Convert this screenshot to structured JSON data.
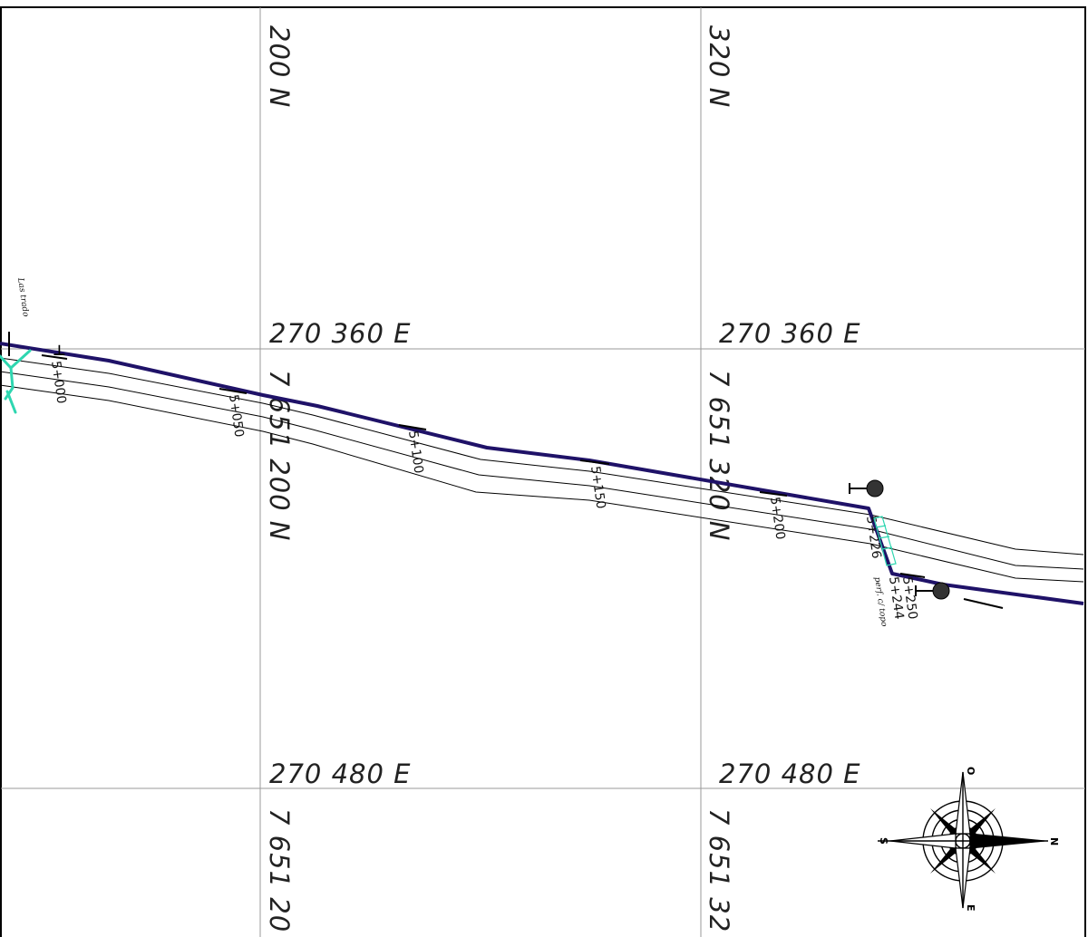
{
  "grid": {
    "vertical_lines": [
      {
        "id": "col-a",
        "labels": [
          {
            "id": "col-a-top",
            "text": "200 N"
          },
          {
            "id": "col-a-mid",
            "text": "7 651 200 N"
          },
          {
            "id": "col-a-bot",
            "text": "7 651 20"
          }
        ]
      },
      {
        "id": "col-b",
        "labels": [
          {
            "id": "col-b-top",
            "text": "320 N"
          },
          {
            "id": "col-b-mid",
            "text": "7 651 320 N"
          },
          {
            "id": "col-b-bot",
            "text": "7 651 32"
          }
        ]
      }
    ],
    "horizontal_lines": [
      {
        "id": "row-1",
        "labels": [
          {
            "id": "row-1-a",
            "text": "270 360 E"
          },
          {
            "id": "row-1-b",
            "text": "270 360 E"
          }
        ]
      },
      {
        "id": "row-2",
        "labels": [
          {
            "id": "row-2-a",
            "text": "270 480 E"
          },
          {
            "id": "row-2-b",
            "text": "270 480 E"
          }
        ]
      }
    ]
  },
  "alignment": {
    "color": "#1f1268",
    "offset_color": "#000000",
    "stations": [
      "5+000",
      "5+050",
      "5+100",
      "5+150",
      "5+200",
      "5+226",
      "5+244",
      "5+250"
    ]
  },
  "annotations": {
    "label_top_left": "Las trado",
    "perf_label": "perf. c/ topo",
    "feature_color": "#2ed6b0"
  },
  "compass": {
    "north": "N",
    "south": "S",
    "east": "E",
    "west": "O"
  }
}
